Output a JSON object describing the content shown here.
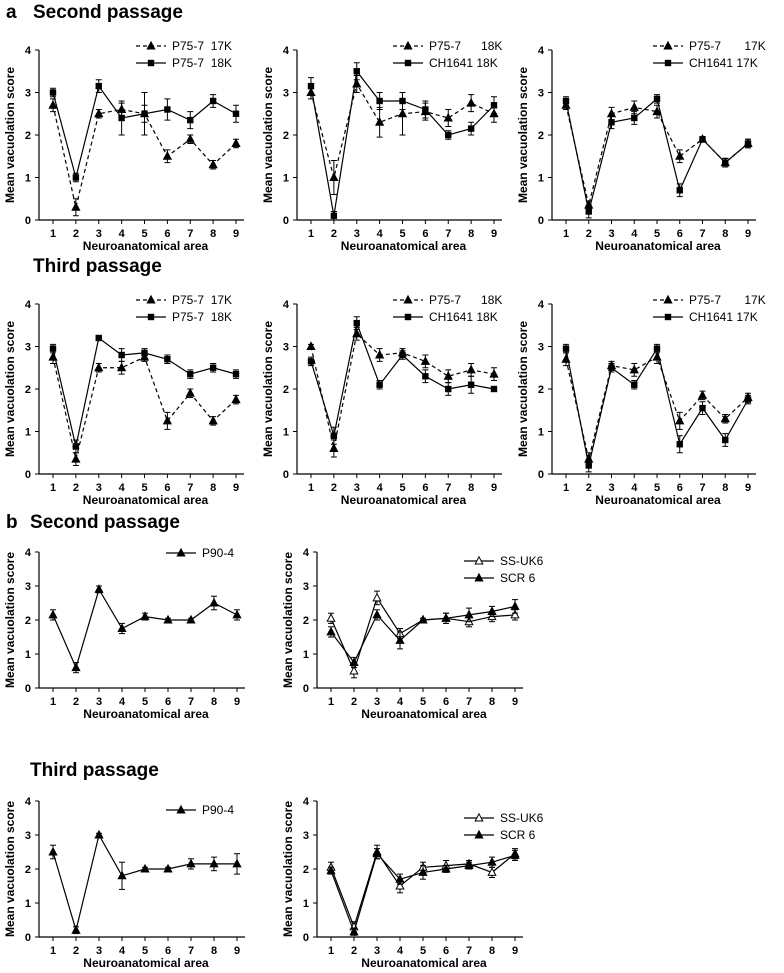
{
  "section_labels": [
    {
      "letter": "a",
      "passage": "Second passage"
    },
    {
      "letter": "",
      "passage": "Third passage"
    },
    {
      "letter": "b",
      "passage": "Second passage"
    },
    {
      "letter": "",
      "passage": "Third passage"
    }
  ],
  "colors": {
    "line": "#000000",
    "background": "#ffffff"
  },
  "chart_data": [
    {
      "type": "line",
      "title": "Second passage",
      "xlabel": "Neuroanatomical area",
      "ylabel": "Mean vacuolation score",
      "categories": [
        "1",
        "2",
        "3",
        "4",
        "5",
        "6",
        "7",
        "8",
        "9"
      ],
      "ylim": [
        0,
        4
      ],
      "yticks": [
        "0",
        "1",
        "2",
        "3",
        "4"
      ],
      "legend_position": "top-right",
      "series": [
        {
          "name": "P75-7  17K",
          "marker": "filled-triangle",
          "dash": "dashed",
          "values": [
            2.7,
            0.3,
            2.5,
            2.6,
            2.5,
            1.5,
            1.9,
            1.3,
            1.8
          ],
          "errors": [
            0.15,
            0.2,
            0.1,
            0.15,
            0.2,
            0.15,
            0.1,
            0.1,
            0.1
          ]
        },
        {
          "name": "P75-7  18K",
          "marker": "filled-square",
          "dash": "solid",
          "values": [
            3.0,
            1.0,
            3.15,
            2.4,
            2.5,
            2.6,
            2.35,
            2.8,
            2.5
          ],
          "errors": [
            0.1,
            0.1,
            0.15,
            0.4,
            0.5,
            0.25,
            0.2,
            0.15,
            0.2
          ]
        }
      ]
    },
    {
      "type": "line",
      "title": "Second passage",
      "xlabel": "Neuroanatomical area",
      "ylabel": "Mean vacuolation score",
      "categories": [
        "1",
        "2",
        "3",
        "4",
        "5",
        "6",
        "7",
        "8",
        "9"
      ],
      "ylim": [
        0,
        4
      ],
      "yticks": [
        "0",
        "1",
        "2",
        "3",
        "4"
      ],
      "legend_position": "top-right",
      "series": [
        {
          "name": "P75-7      18K",
          "marker": "filled-triangle",
          "dash": "dashed",
          "values": [
            3.0,
            1.0,
            3.2,
            2.3,
            2.5,
            2.55,
            2.4,
            2.75,
            2.5
          ],
          "errors": [
            0.15,
            0.4,
            0.2,
            0.35,
            0.5,
            0.2,
            0.2,
            0.2,
            0.2
          ]
        },
        {
          "name": "CH1641 18K",
          "marker": "filled-square",
          "dash": "solid",
          "values": [
            3.15,
            0.1,
            3.5,
            2.8,
            2.8,
            2.6,
            2.0,
            2.15,
            2.7
          ],
          "errors": [
            0.2,
            0.1,
            0.2,
            0.2,
            0.2,
            0.2,
            0.1,
            0.15,
            0.2
          ]
        }
      ]
    },
    {
      "type": "line",
      "title": "Second passage",
      "xlabel": "Neuroanatomical area",
      "ylabel": "Mean vacuolation score",
      "categories": [
        "1",
        "2",
        "3",
        "4",
        "5",
        "6",
        "7",
        "8",
        "9"
      ],
      "ylim": [
        0,
        4
      ],
      "yticks": [
        "0",
        "1",
        "2",
        "3",
        "4"
      ],
      "legend_position": "top-right",
      "series": [
        {
          "name": "P75-7       17K",
          "marker": "filled-triangle",
          "dash": "dashed",
          "values": [
            2.7,
            0.35,
            2.5,
            2.65,
            2.55,
            1.5,
            1.9,
            1.35,
            1.8
          ],
          "errors": [
            0.1,
            0.1,
            0.15,
            0.15,
            0.15,
            0.15,
            0.05,
            0.1,
            0.1
          ]
        },
        {
          "name": "CH1641 17K",
          "marker": "filled-square",
          "dash": "solid",
          "values": [
            2.8,
            0.2,
            2.3,
            2.4,
            2.85,
            0.7,
            1.9,
            1.35,
            1.8
          ],
          "errors": [
            0.1,
            0.15,
            0.15,
            0.15,
            0.1,
            0.15,
            0.05,
            0.1,
            0.1
          ]
        }
      ]
    },
    {
      "type": "line",
      "title": "Third passage",
      "xlabel": "Neuroanatomical area",
      "ylabel": "Mean vacuolation score",
      "categories": [
        "1",
        "2",
        "3",
        "4",
        "5",
        "6",
        "7",
        "8",
        "9"
      ],
      "ylim": [
        0,
        4
      ],
      "yticks": [
        "0",
        "1",
        "2",
        "3",
        "4"
      ],
      "legend_position": "top-right",
      "series": [
        {
          "name": "P75-7  17K",
          "marker": "filled-triangle",
          "dash": "dashed",
          "values": [
            2.75,
            0.35,
            2.5,
            2.5,
            2.75,
            1.25,
            1.9,
            1.25,
            1.75
          ],
          "errors": [
            0.15,
            0.15,
            0.1,
            0.15,
            0.1,
            0.2,
            0.1,
            0.1,
            0.1
          ]
        },
        {
          "name": "P75-7  18K",
          "marker": "filled-square",
          "dash": "solid",
          "values": [
            2.95,
            0.65,
            3.2,
            2.8,
            2.85,
            2.7,
            2.35,
            2.5,
            2.35
          ],
          "errors": [
            0.1,
            0.15,
            0.05,
            0.15,
            0.1,
            0.1,
            0.1,
            0.1,
            0.1
          ]
        }
      ]
    },
    {
      "type": "line",
      "title": "Third passage",
      "xlabel": "Neuroanatomical area",
      "ylabel": "Mean vacuolation score",
      "categories": [
        "1",
        "2",
        "3",
        "4",
        "5",
        "6",
        "7",
        "8",
        "9"
      ],
      "ylim": [
        0,
        4
      ],
      "yticks": [
        "0",
        "1",
        "2",
        "3",
        "4"
      ],
      "legend_position": "top-right",
      "series": [
        {
          "name": "P75-7      18K",
          "marker": "filled-triangle",
          "dash": "dashed",
          "values": [
            3.0,
            0.6,
            3.3,
            2.8,
            2.85,
            2.65,
            2.3,
            2.45,
            2.35
          ],
          "errors": [
            0.05,
            0.2,
            0.15,
            0.15,
            0.1,
            0.15,
            0.15,
            0.15,
            0.15
          ]
        },
        {
          "name": "CH1641 18K",
          "marker": "filled-square",
          "dash": "solid",
          "values": [
            2.65,
            0.9,
            3.55,
            2.1,
            2.8,
            2.3,
            2.0,
            2.1,
            2.0
          ],
          "errors": [
            0.1,
            0.2,
            0.15,
            0.1,
            0.1,
            0.15,
            0.15,
            0.2,
            0.05
          ]
        }
      ]
    },
    {
      "type": "line",
      "title": "Third passage",
      "xlabel": "Neuroanatomical area",
      "ylabel": "Mean vacuolation score",
      "categories": [
        "1",
        "2",
        "3",
        "4",
        "5",
        "6",
        "7",
        "8",
        "9"
      ],
      "ylim": [
        0,
        4
      ],
      "yticks": [
        "0",
        "1",
        "2",
        "3",
        "4"
      ],
      "legend_position": "top-right",
      "series": [
        {
          "name": "P75-7       17K",
          "marker": "filled-triangle",
          "dash": "dashed",
          "values": [
            2.7,
            0.35,
            2.55,
            2.45,
            2.75,
            1.25,
            1.85,
            1.3,
            1.8
          ],
          "errors": [
            0.15,
            0.15,
            0.1,
            0.15,
            0.15,
            0.2,
            0.1,
            0.1,
            0.1
          ]
        },
        {
          "name": "CH1641 17K",
          "marker": "filled-square",
          "dash": "solid",
          "values": [
            2.95,
            0.2,
            2.5,
            2.1,
            2.95,
            0.7,
            1.55,
            0.8,
            1.75
          ],
          "errors": [
            0.1,
            0.15,
            0.1,
            0.1,
            0.1,
            0.2,
            0.15,
            0.15,
            0.1
          ]
        }
      ]
    },
    {
      "type": "line",
      "title": "Second passage",
      "xlabel": "Neuroanatomical area",
      "ylabel": "Mean vacuolation score",
      "categories": [
        "1",
        "2",
        "3",
        "4",
        "5",
        "6",
        "7",
        "8",
        "9"
      ],
      "ylim": [
        0,
        4
      ],
      "yticks": [
        "0",
        "1",
        "2",
        "3",
        "4"
      ],
      "legend_position": "top-right",
      "series": [
        {
          "name": "P90-4",
          "marker": "filled-triangle",
          "dash": "solid",
          "values": [
            2.15,
            0.6,
            2.9,
            1.75,
            2.1,
            2.0,
            2.0,
            2.5,
            2.15
          ],
          "errors": [
            0.15,
            0.15,
            0.1,
            0.15,
            0.1,
            0.05,
            0.05,
            0.2,
            0.15
          ]
        }
      ]
    },
    {
      "type": "line",
      "title": "Second passage",
      "xlabel": "Neuroanatomical area",
      "ylabel": "Mean vacuolation score",
      "categories": [
        "1",
        "2",
        "3",
        "4",
        "5",
        "6",
        "7",
        "8",
        "9"
      ],
      "ylim": [
        0,
        4
      ],
      "yticks": [
        "0",
        "1",
        "2",
        "3",
        "4"
      ],
      "legend_position": "top-right",
      "series": [
        {
          "name": "SS-UK6",
          "marker": "open-triangle",
          "dash": "solid",
          "values": [
            2.05,
            0.5,
            2.65,
            1.6,
            2.0,
            2.05,
            1.95,
            2.1,
            2.15
          ],
          "errors": [
            0.15,
            0.2,
            0.2,
            0.15,
            0.05,
            0.15,
            0.15,
            0.15,
            0.15
          ]
        },
        {
          "name": "SCR 6",
          "marker": "filled-triangle",
          "dash": "solid",
          "values": [
            1.65,
            0.75,
            2.15,
            1.4,
            2.0,
            2.05,
            2.15,
            2.25,
            2.4
          ],
          "errors": [
            0.15,
            0.15,
            0.15,
            0.25,
            0.05,
            0.15,
            0.2,
            0.15,
            0.2
          ]
        }
      ]
    },
    {
      "type": "line",
      "title": "Third passage",
      "xlabel": "Neuroanatomical area",
      "ylabel": "Mean vacuolation score",
      "categories": [
        "1",
        "2",
        "3",
        "4",
        "5",
        "6",
        "7",
        "8",
        "9"
      ],
      "ylim": [
        0,
        4
      ],
      "yticks": [
        "0",
        "1",
        "2",
        "3",
        "4"
      ],
      "legend_position": "top-right",
      "series": [
        {
          "name": "P90-4",
          "marker": "filled-triangle",
          "dash": "solid",
          "values": [
            2.5,
            0.2,
            3.0,
            1.8,
            2.0,
            2.0,
            2.15,
            2.15,
            2.15
          ],
          "errors": [
            0.2,
            0.1,
            0.05,
            0.4,
            0.05,
            0.05,
            0.15,
            0.2,
            0.3
          ]
        }
      ]
    },
    {
      "type": "line",
      "title": "Third passage",
      "xlabel": "Neuroanatomical area",
      "ylabel": "Mean vacuolation score",
      "categories": [
        "1",
        "2",
        "3",
        "4",
        "5",
        "6",
        "7",
        "8",
        "9"
      ],
      "ylim": [
        0,
        4
      ],
      "yticks": [
        "0",
        "1",
        "2",
        "3",
        "4"
      ],
      "legend_position": "top-right",
      "series": [
        {
          "name": "SS-UK6",
          "marker": "open-triangle",
          "dash": "solid",
          "values": [
            2.05,
            0.3,
            2.5,
            1.5,
            2.05,
            2.1,
            2.15,
            1.9,
            2.45
          ],
          "errors": [
            0.15,
            0.15,
            0.2,
            0.2,
            0.15,
            0.15,
            0.1,
            0.15,
            0.15
          ]
        },
        {
          "name": "SCR 6",
          "marker": "filled-triangle",
          "dash": "solid",
          "values": [
            1.95,
            0.15,
            2.45,
            1.7,
            1.9,
            2.0,
            2.1,
            2.2,
            2.4
          ],
          "errors": [
            0.1,
            0.1,
            0.15,
            0.15,
            0.2,
            0.1,
            0.1,
            0.15,
            0.15
          ]
        }
      ]
    }
  ]
}
